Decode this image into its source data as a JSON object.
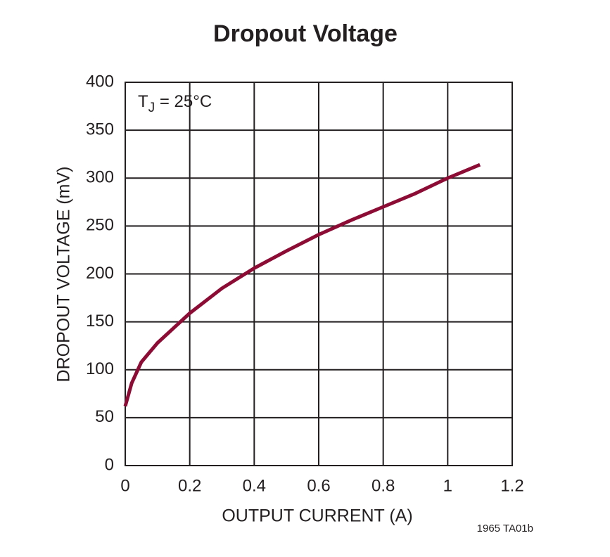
{
  "chart_data": {
    "type": "line",
    "title": "Dropout Voltage",
    "x_label": "OUTPUT CURRENT (A)",
    "y_label": "DROPOUT VOLTAGE (mV)",
    "annotation": {
      "text": "T",
      "subscript": "J",
      "suffix": " = 25°C"
    },
    "footnote": "1965 TA01b",
    "x": [
      0,
      0.02,
      0.05,
      0.1,
      0.2,
      0.3,
      0.4,
      0.5,
      0.6,
      0.7,
      0.8,
      0.9,
      1.0,
      1.1
    ],
    "values": [
      62,
      86,
      108,
      128,
      159,
      185,
      206,
      224,
      241,
      256,
      270,
      284,
      300,
      314
    ],
    "color": "#8c0c35",
    "xlim": [
      0,
      1.2
    ],
    "xticks": [
      0,
      0.2,
      0.4,
      0.6,
      0.8,
      1,
      1.2
    ],
    "ylim": [
      0,
      400
    ],
    "yticks": [
      0,
      50,
      100,
      150,
      200,
      250,
      300,
      350,
      400
    ],
    "grid": true
  }
}
